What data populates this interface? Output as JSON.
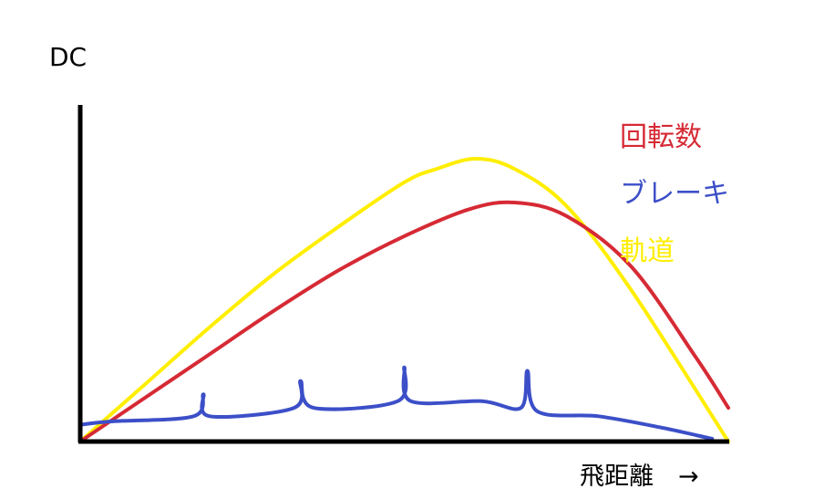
{
  "chart_data": {
    "type": "line",
    "ylabel": "DC",
    "xlabel": "飛距離　→",
    "xlim": [
      0,
      100
    ],
    "ylim": [
      0,
      100
    ],
    "grid": false,
    "legend": "top-right",
    "series": [
      {
        "name": "回転数",
        "color": "#d62a35",
        "x": [
          0,
          10,
          20,
          30,
          40,
          50,
          60,
          67,
          75,
          85,
          95,
          100
        ],
        "y": [
          0,
          13,
          26,
          39,
          51,
          61,
          69,
          71,
          67,
          52,
          25,
          10
        ]
      },
      {
        "name": "ブレーキ",
        "color": "#3c4fc8",
        "x": [
          0,
          5,
          17.5,
          19,
          20,
          33,
          34,
          36,
          49,
          50,
          51,
          62,
          68,
          69,
          70.5,
          80,
          90,
          97.5
        ],
        "y": [
          5,
          6,
          7.5,
          14,
          7.5,
          10,
          18,
          10,
          12,
          22,
          12,
          12,
          10,
          21,
          9,
          7.5,
          4,
          0.8
        ]
      },
      {
        "name": "軌道",
        "color": "#ffee00",
        "x": [
          0,
          10,
          20,
          30,
          40,
          50,
          55,
          61,
          67,
          75,
          85,
          100
        ],
        "y": [
          0,
          17,
          34,
          50,
          64,
          77,
          81,
          84,
          81,
          70,
          45,
          0
        ]
      }
    ]
  }
}
